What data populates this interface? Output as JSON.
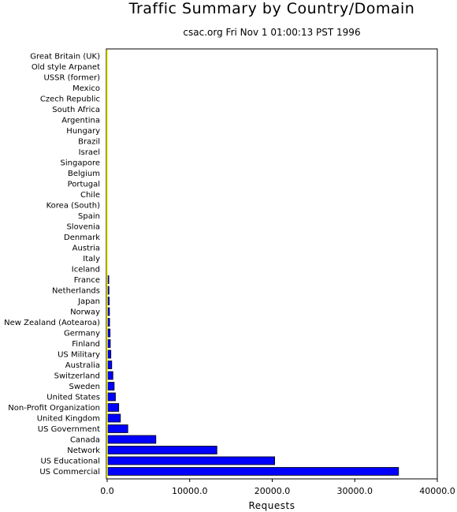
{
  "chart_data": {
    "type": "bar",
    "orientation": "horizontal",
    "title": "Traffic Summary by Country/Domain",
    "subtitle": "csac.org Fri Nov  1 01:00:13 PST 1996",
    "xlabel": "Requests",
    "ylabel": "",
    "xlim": [
      0,
      40000
    ],
    "x_ticks": [
      "0.0",
      "10000.0",
      "20000.0",
      "30000.0",
      "40000.0"
    ],
    "bar_color": "#0000ff",
    "axis_line_color": "#ffff00",
    "grid": false,
    "categories": [
      "Great Britain (UK)",
      "Old style Arpanet",
      "USSR (former)",
      "Mexico",
      "Czech Republic",
      "South Africa",
      "Argentina",
      "Hungary",
      "Brazil",
      "Israel",
      "Singapore",
      "Belgium",
      "Portugal",
      "Chile",
      "Korea (South)",
      "Spain",
      "Slovenia",
      "Denmark",
      "Austria",
      "Italy",
      "Iceland",
      "France",
      "Netherlands",
      "Japan",
      "Norway",
      "New Zealand (Aotearoa)",
      "Germany",
      "Finland",
      "US Military",
      "Australia",
      "Switzerland",
      "Sweden",
      "United States",
      "Non-Profit Organization",
      "United Kingdom",
      "US Government",
      "Canada",
      "Network",
      "US Educational",
      "US Commercial"
    ],
    "values": [
      5,
      5,
      5,
      10,
      10,
      15,
      15,
      20,
      20,
      25,
      30,
      30,
      35,
      40,
      45,
      60,
      70,
      80,
      100,
      120,
      130,
      200,
      220,
      250,
      280,
      300,
      350,
      380,
      450,
      550,
      700,
      850,
      1000,
      1400,
      1600,
      2500,
      5900,
      13300,
      20300,
      35300
    ]
  }
}
